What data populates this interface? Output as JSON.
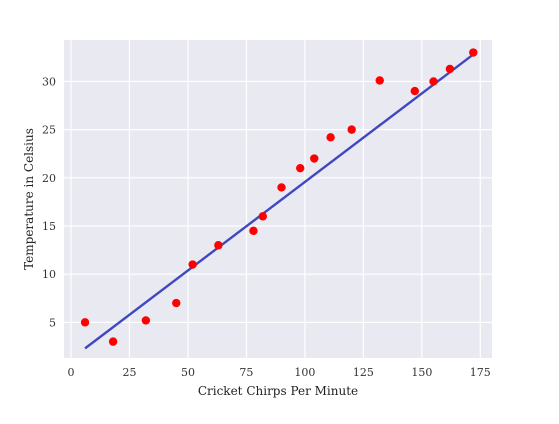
{
  "chart_data": {
    "type": "scatter",
    "xlabel": "Cricket Chirps Per Minute",
    "ylabel": "Temperature in Celsius",
    "xlim": [
      -3,
      180
    ],
    "ylim": [
      1.3,
      34.3
    ],
    "xticks": [
      0,
      25,
      50,
      75,
      100,
      125,
      150,
      175
    ],
    "yticks": [
      5,
      10,
      15,
      20,
      25,
      30
    ],
    "grid": true,
    "background": "#e9e9f1",
    "grid_color": "#ffffff",
    "series": [
      {
        "kind": "scatter",
        "color": "#ff0000",
        "points": [
          {
            "x": 6,
            "y": 5
          },
          {
            "x": 18,
            "y": 3
          },
          {
            "x": 32,
            "y": 5.2
          },
          {
            "x": 45,
            "y": 7
          },
          {
            "x": 52,
            "y": 11
          },
          {
            "x": 63,
            "y": 13
          },
          {
            "x": 78,
            "y": 14.5
          },
          {
            "x": 82,
            "y": 16
          },
          {
            "x": 90,
            "y": 19
          },
          {
            "x": 98,
            "y": 21
          },
          {
            "x": 104,
            "y": 22
          },
          {
            "x": 111,
            "y": 24.2
          },
          {
            "x": 120,
            "y": 25
          },
          {
            "x": 132,
            "y": 30.1
          },
          {
            "x": 147,
            "y": 29
          },
          {
            "x": 155,
            "y": 30
          },
          {
            "x": 162,
            "y": 31.3
          },
          {
            "x": 172,
            "y": 33
          }
        ]
      },
      {
        "kind": "line",
        "color": "#3f48c0",
        "points": [
          {
            "x": 6,
            "y": 2.3
          },
          {
            "x": 172,
            "y": 32.8
          }
        ]
      }
    ]
  }
}
